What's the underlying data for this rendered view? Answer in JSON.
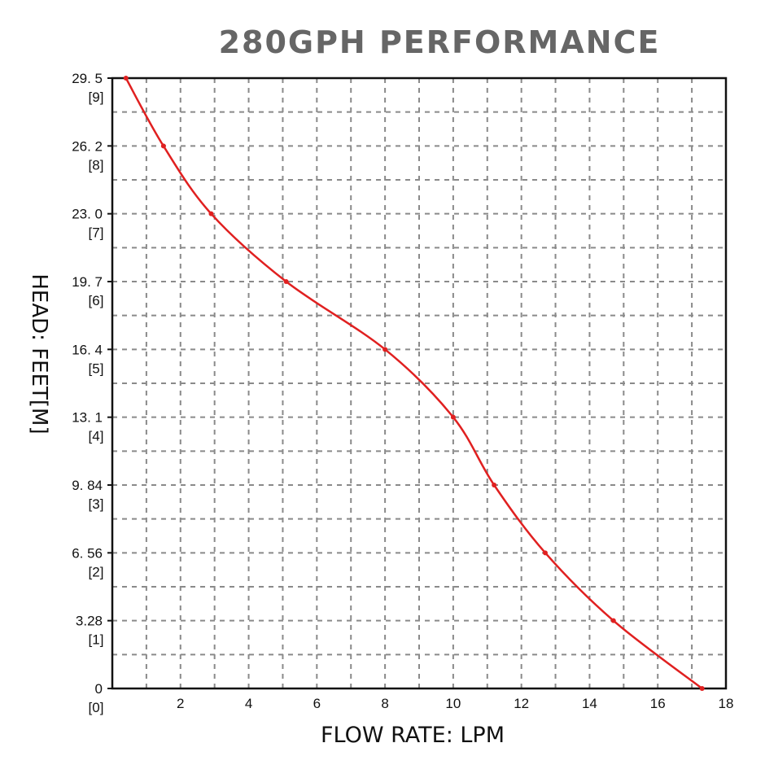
{
  "chart_data": {
    "type": "line",
    "title": "280GPH PERFORMANCE",
    "xlabel": "FLOW RATE: LPM",
    "ylabel": "HEAD: FEET[M]",
    "xlim": [
      0,
      18
    ],
    "ylim": [
      0,
      9
    ],
    "x_ticks": [
      "2",
      "4",
      "6",
      "8",
      "10",
      "12",
      "14",
      "16",
      "18"
    ],
    "y_ticks": [
      {
        "feet": "0",
        "m": "[0]"
      },
      {
        "feet": "3.28",
        "m": "[1]"
      },
      {
        "feet": "6. 56",
        "m": "[2]"
      },
      {
        "feet": "9. 84",
        "m": "[3]"
      },
      {
        "feet": "13. 1",
        "m": "[4]"
      },
      {
        "feet": "16. 4",
        "m": "[5]"
      },
      {
        "feet": "19. 7",
        "m": "[6]"
      },
      {
        "feet": "23. 0",
        "m": "[7]"
      },
      {
        "feet": "26. 2",
        "m": "[8]"
      },
      {
        "feet": "29. 5",
        "m": "[9]"
      }
    ],
    "grid": true,
    "series": [
      {
        "x": [
          0.4,
          1.5,
          2.9,
          5.1,
          8.0,
          10.0,
          11.2,
          12.7,
          14.7,
          17.3
        ],
        "y": [
          9.0,
          8.0,
          7.0,
          6.0,
          5.0,
          4.0,
          3.0,
          2.0,
          1.0,
          0.0
        ],
        "color": "#e02020",
        "markers": true
      }
    ]
  }
}
